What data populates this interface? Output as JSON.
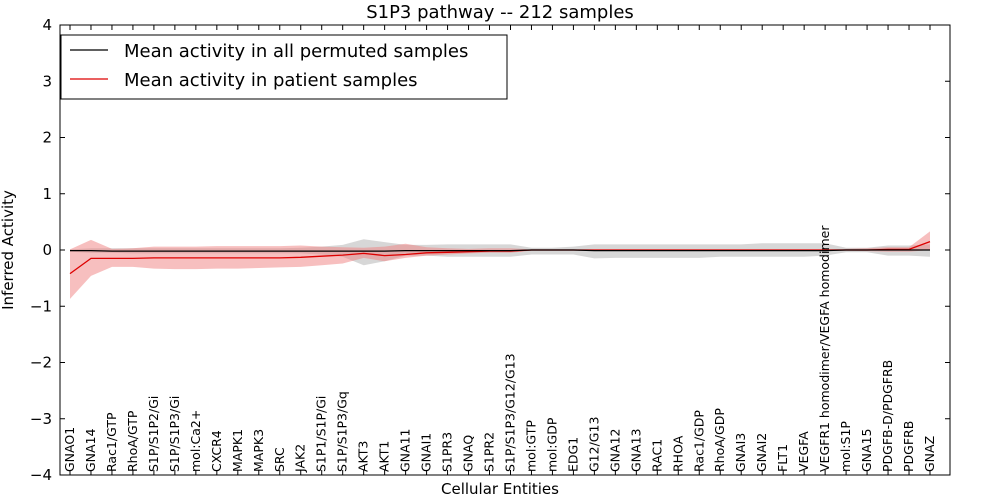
{
  "chart_data": {
    "type": "line",
    "title": "S1P3 pathway -- 212 samples",
    "xlabel": "Cellular Entities",
    "ylabel": "Inferred Activity",
    "ylim": [
      -4,
      4
    ],
    "yticks": [
      -4,
      -3,
      -2,
      -1,
      0,
      1,
      2,
      3,
      4
    ],
    "ytick_labels": [
      "−4",
      "−3",
      "−2",
      "−1",
      "0",
      "1",
      "2",
      "3",
      "4"
    ],
    "grid": false,
    "legend_position": "top-left",
    "categories": [
      "GNAO1",
      "GNA14",
      "Rac1/GTP",
      "RhoA/GTP",
      "S1P/S1P2/Gi",
      "S1P/S1P3/Gi",
      "mol:Ca2+",
      "CXCR4",
      "MAPK1",
      "MAPK3",
      "SRC",
      "JAK2",
      "S1P1/S1P/Gi",
      "S1P/S1P3/Gq",
      "AKT3",
      "AKT1",
      "GNA11",
      "GNAI1",
      "S1PR3",
      "GNAQ",
      "S1PR2",
      "S1P/S1P3/G12/G13",
      "mol:GTP",
      "mol:GDP",
      "EDG1",
      "G12/G13",
      "GNA12",
      "GNA13",
      "RAC1",
      "RHOA",
      "Rac1/GDP",
      "RhoA/GDP",
      "GNAI3",
      "GNAI2",
      "FLT1",
      "VEGFA",
      "VEGFR1 homodimer/VEGFA homodimer",
      "mol:S1P",
      "GNA15",
      "PDGFB-D/PDGFRB",
      "PDGFRB",
      "GNAZ"
    ],
    "series": [
      {
        "name": "Mean activity in all permuted samples",
        "color": "#000000",
        "band_color": "#b0b0b0",
        "values": [
          -0.01,
          -0.01,
          -0.02,
          -0.02,
          -0.02,
          -0.02,
          -0.02,
          -0.02,
          -0.02,
          -0.02,
          -0.02,
          -0.02,
          -0.02,
          -0.02,
          -0.02,
          -0.02,
          -0.01,
          -0.01,
          -0.01,
          -0.01,
          -0.01,
          -0.01,
          0,
          0,
          0,
          -0.01,
          -0.01,
          -0.01,
          -0.01,
          -0.01,
          -0.01,
          -0.01,
          -0.01,
          -0.01,
          -0.01,
          -0.01,
          -0.01,
          0,
          0,
          0,
          0,
          0
        ],
        "lower": [
          -0.03,
          -0.05,
          -0.05,
          -0.06,
          -0.06,
          -0.06,
          -0.06,
          -0.06,
          -0.06,
          -0.06,
          -0.06,
          -0.06,
          -0.08,
          -0.12,
          -0.27,
          -0.2,
          -0.1,
          -0.1,
          -0.12,
          -0.12,
          -0.12,
          -0.12,
          -0.08,
          -0.08,
          -0.08,
          -0.15,
          -0.14,
          -0.14,
          -0.14,
          -0.14,
          -0.14,
          -0.12,
          -0.12,
          -0.12,
          -0.12,
          -0.12,
          -0.1,
          -0.04,
          -0.04,
          -0.1,
          -0.1,
          -0.12
        ],
        "upper": [
          0.01,
          0.03,
          0.03,
          0.03,
          0.03,
          0.03,
          0.03,
          0.03,
          0.03,
          0.03,
          0.03,
          0.04,
          0.06,
          0.09,
          0.19,
          0.14,
          0.09,
          0.09,
          0.1,
          0.1,
          0.1,
          0.1,
          0.04,
          0.04,
          0.06,
          0.1,
          0.1,
          0.1,
          0.1,
          0.1,
          0.1,
          0.1,
          0.1,
          0.12,
          0.12,
          0.12,
          0.12,
          0.04,
          0.04,
          0.08,
          0.08,
          0.1
        ]
      },
      {
        "name": "Mean activity in patient samples",
        "color": "#dd0000",
        "band_color": "#f08080",
        "values": [
          -0.42,
          -0.15,
          -0.15,
          -0.15,
          -0.14,
          -0.14,
          -0.14,
          -0.14,
          -0.14,
          -0.14,
          -0.14,
          -0.13,
          -0.11,
          -0.09,
          -0.06,
          -0.1,
          -0.08,
          -0.05,
          -0.04,
          -0.03,
          -0.02,
          -0.02,
          0,
          0,
          0,
          0,
          0,
          0,
          0,
          0,
          0,
          0,
          0,
          0,
          0,
          0,
          0,
          0,
          0,
          0.01,
          0.01,
          0.15
        ],
        "lower": [
          -0.87,
          -0.46,
          -0.3,
          -0.3,
          -0.33,
          -0.34,
          -0.34,
          -0.33,
          -0.33,
          -0.32,
          -0.31,
          -0.3,
          -0.27,
          -0.24,
          -0.14,
          -0.2,
          -0.14,
          -0.1,
          -0.08,
          -0.06,
          -0.05,
          -0.05,
          -0.01,
          -0.01,
          -0.01,
          -0.01,
          -0.01,
          -0.01,
          -0.01,
          -0.01,
          -0.01,
          -0.01,
          -0.01,
          -0.01,
          -0.01,
          -0.01,
          -0.01,
          -0.01,
          -0.02,
          -0.03,
          -0.03,
          0
        ],
        "upper": [
          0.01,
          0.18,
          0.02,
          0.03,
          0.06,
          0.06,
          0.06,
          0.07,
          0.07,
          0.07,
          0.07,
          0.08,
          0.06,
          0.05,
          0.04,
          0.06,
          0.11,
          0.05,
          0.03,
          0.02,
          0.03,
          0.03,
          0.01,
          0.01,
          0.01,
          0.01,
          0.01,
          0.01,
          0.01,
          0.01,
          0.01,
          0.01,
          0.01,
          0.01,
          0.01,
          0.01,
          0.01,
          0.02,
          0.03,
          0.05,
          0.05,
          0.33
        ]
      }
    ]
  }
}
